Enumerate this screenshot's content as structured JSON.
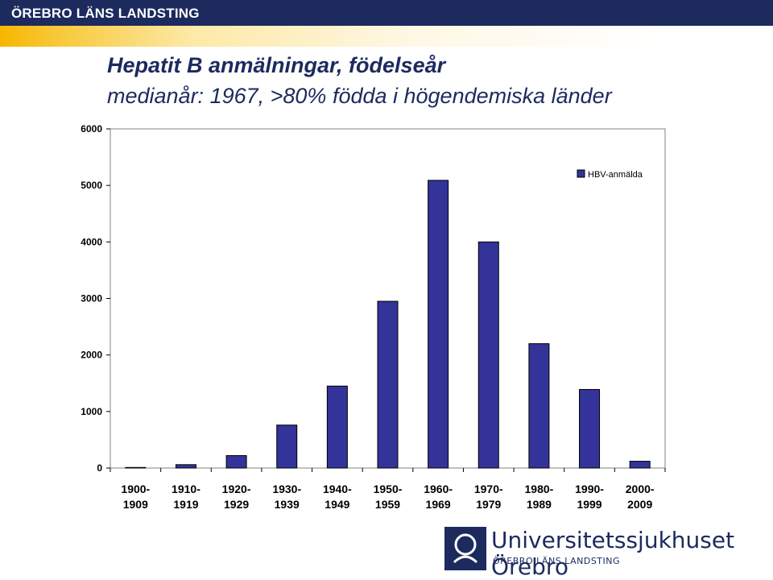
{
  "header": {
    "brand": "ÖREBRO LÄNS LANDSTING"
  },
  "colors": {
    "header_bg": "#1c2a5e",
    "accent_stripe": "#f7b600",
    "bar_fill": "#333399",
    "title_text": "#1c2a5e"
  },
  "chart_data": {
    "type": "bar",
    "title": "Hepatit B anmälningar, födelseår",
    "subtitle": "medianår: 1967, >80% födda i högendemiska länder",
    "categories": [
      [
        "1900-",
        "1909"
      ],
      [
        "1910-",
        "1919"
      ],
      [
        "1920-",
        "1929"
      ],
      [
        "1930-",
        "1939"
      ],
      [
        "1940-",
        "1949"
      ],
      [
        "1950-",
        "1959"
      ],
      [
        "1960-",
        "1969"
      ],
      [
        "1970-",
        "1979"
      ],
      [
        "1980-",
        "1989"
      ],
      [
        "1990-",
        "1999"
      ],
      [
        "2000-",
        "2009"
      ]
    ],
    "series": [
      {
        "name": "HBV-anmälda",
        "values": [
          10,
          60,
          220,
          760,
          1450,
          2950,
          5090,
          4000,
          2200,
          1390,
          120
        ]
      }
    ],
    "ylim": [
      0,
      6000
    ],
    "yticks": [
      0,
      1000,
      2000,
      3000,
      4000,
      5000,
      6000
    ],
    "grid": false,
    "legend": "top-right"
  },
  "footer": {
    "logo_name": "Universitetssjukhuset Örebro",
    "logo_sub": "ÖREBRO LÄNS LANDSTING"
  }
}
